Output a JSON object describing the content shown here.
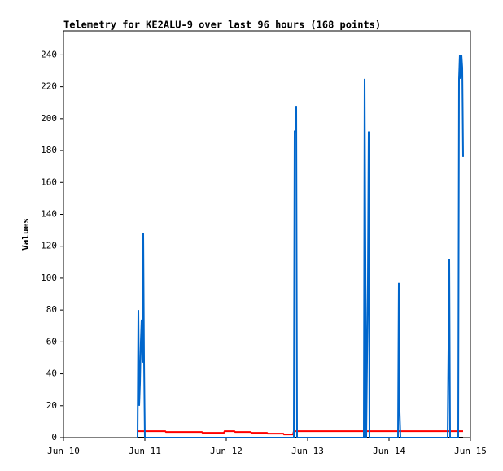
{
  "chart_data": {
    "type": "line",
    "title": "Telemetry for KE2ALU-9 over last 96 hours (168 points)",
    "y_label": "Values",
    "xlim": [
      10,
      15
    ],
    "xticks": [
      {
        "value": 10,
        "label": "Jun 10"
      },
      {
        "value": 11,
        "label": "Jun 11"
      },
      {
        "value": 12,
        "label": "Jun 12"
      },
      {
        "value": 13,
        "label": "Jun 13"
      },
      {
        "value": 14,
        "label": "Jun 14"
      },
      {
        "value": 15,
        "label": "Jun 15"
      }
    ],
    "ylim": [
      0,
      255
    ],
    "yticks": [
      0,
      20,
      40,
      60,
      80,
      100,
      120,
      140,
      160,
      180,
      200,
      220,
      240
    ],
    "grid": false,
    "series": [
      {
        "color": "#000000",
        "x": [
          10.92,
          14.91
        ],
        "values": [
          0,
          0
        ]
      },
      {
        "color": "#ff0000",
        "x": [
          10.92,
          11.25,
          11.26,
          11.7,
          11.71,
          11.97,
          11.98,
          12.1,
          12.11,
          12.3,
          12.31,
          12.5,
          12.51,
          12.7,
          12.71,
          12.82,
          12.83,
          14.91
        ],
        "values": [
          4,
          4,
          3.5,
          3.5,
          3,
          3,
          4,
          4,
          3.5,
          3.5,
          3,
          3,
          2.5,
          2.5,
          2,
          2,
          4,
          4
        ]
      },
      {
        "color": "#0066cc",
        "x": [
          10.91,
          10.92,
          10.93,
          10.94,
          10.95,
          10.96,
          10.97,
          10.98,
          10.99,
          11.0,
          12.83,
          12.84,
          12.85,
          12.86,
          12.87,
          13.69,
          13.7,
          13.71,
          13.72,
          13.74,
          13.75,
          13.76,
          14.11,
          14.12,
          14.13,
          14.14,
          14.72,
          14.73,
          14.74,
          14.75,
          14.85,
          14.86,
          14.87,
          14.88,
          14.89,
          14.9,
          14.91
        ],
        "values": [
          0,
          80,
          20,
          34,
          60,
          74,
          47,
          128,
          48,
          0,
          0,
          192,
          192,
          208,
          0,
          0,
          225,
          112,
          0,
          97,
          192,
          0,
          0,
          97,
          16,
          0,
          0,
          56,
          112,
          0,
          0,
          225,
          240,
          225,
          240,
          232,
          176
        ]
      }
    ]
  }
}
